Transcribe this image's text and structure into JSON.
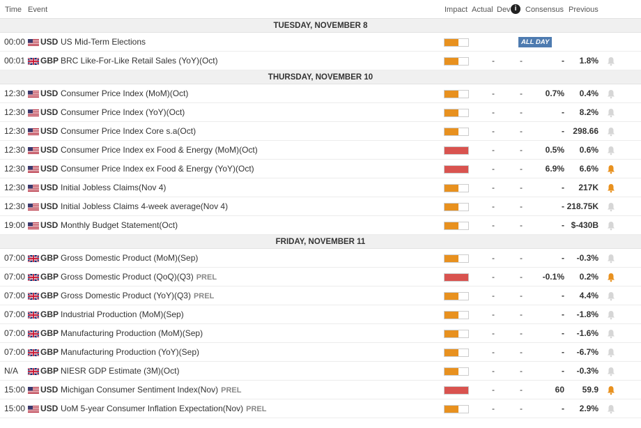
{
  "header": {
    "time": "Time",
    "event": "Event",
    "impact": "Impact",
    "actual": "Actual",
    "dev": "Dev",
    "info_icon": "i",
    "consensus": "Consensus",
    "previous": "Previous"
  },
  "colors": {
    "impact_medium": "#e8911f",
    "impact_high": "#d9534f",
    "bell_active": "#e8911f",
    "bell_inactive": "#d6d6d6",
    "allday_bg": "#4e7bb0"
  },
  "sections": [
    {
      "day": "TUESDAY, NOVEMBER 8",
      "rows": [
        {
          "time": "00:00",
          "flag": "us",
          "currency": "USD",
          "event": "US Mid-Term Elections",
          "prel": "",
          "impact": "medium",
          "impact_level": 0.6,
          "actual": "",
          "dev": "",
          "consensus": "",
          "previous": "",
          "all_day": "ALL DAY",
          "bell": "none"
        },
        {
          "time": "00:01",
          "flag": "gb",
          "currency": "GBP",
          "event": "BRC Like-For-Like Retail Sales (YoY)(Oct)",
          "prel": "",
          "impact": "medium",
          "impact_level": 0.6,
          "actual": "-",
          "dev": "-",
          "consensus": "-",
          "previous": "1.8%",
          "all_day": "",
          "bell": "inactive"
        }
      ]
    },
    {
      "day": "THURSDAY, NOVEMBER 10",
      "rows": [
        {
          "time": "12:30",
          "flag": "us",
          "currency": "USD",
          "event": "Consumer Price Index (MoM)(Oct)",
          "prel": "",
          "impact": "medium",
          "impact_level": 0.6,
          "actual": "-",
          "dev": "-",
          "consensus": "0.7%",
          "previous": "0.4%",
          "all_day": "",
          "bell": "inactive"
        },
        {
          "time": "12:30",
          "flag": "us",
          "currency": "USD",
          "event": "Consumer Price Index (YoY)(Oct)",
          "prel": "",
          "impact": "medium",
          "impact_level": 0.6,
          "actual": "-",
          "dev": "-",
          "consensus": "-",
          "previous": "8.2%",
          "all_day": "",
          "bell": "inactive"
        },
        {
          "time": "12:30",
          "flag": "us",
          "currency": "USD",
          "event": "Consumer Price Index Core s.a(Oct)",
          "prel": "",
          "impact": "medium",
          "impact_level": 0.6,
          "actual": "-",
          "dev": "-",
          "consensus": "-",
          "previous": "298.66",
          "all_day": "",
          "bell": "inactive"
        },
        {
          "time": "12:30",
          "flag": "us",
          "currency": "USD",
          "event": "Consumer Price Index ex Food & Energy (MoM)(Oct)",
          "prel": "",
          "impact": "high",
          "impact_level": 1.0,
          "actual": "-",
          "dev": "-",
          "consensus": "0.5%",
          "previous": "0.6%",
          "all_day": "",
          "bell": "inactive"
        },
        {
          "time": "12:30",
          "flag": "us",
          "currency": "USD",
          "event": "Consumer Price Index ex Food & Energy (YoY)(Oct)",
          "prel": "",
          "impact": "high",
          "impact_level": 1.0,
          "actual": "-",
          "dev": "-",
          "consensus": "6.9%",
          "previous": "6.6%",
          "all_day": "",
          "bell": "active"
        },
        {
          "time": "12:30",
          "flag": "us",
          "currency": "USD",
          "event": "Initial Jobless Claims(Nov 4)",
          "prel": "",
          "impact": "medium",
          "impact_level": 0.6,
          "actual": "-",
          "dev": "-",
          "consensus": "-",
          "previous": "217K",
          "all_day": "",
          "bell": "active"
        },
        {
          "time": "12:30",
          "flag": "us",
          "currency": "USD",
          "event": "Initial Jobless Claims 4-week average(Nov 4)",
          "prel": "",
          "impact": "medium",
          "impact_level": 0.6,
          "actual": "-",
          "dev": "-",
          "consensus": "-",
          "previous": "218.75K",
          "all_day": "",
          "bell": "inactive"
        },
        {
          "time": "19:00",
          "flag": "us",
          "currency": "USD",
          "event": "Monthly Budget Statement(Oct)",
          "prel": "",
          "impact": "medium",
          "impact_level": 0.6,
          "actual": "-",
          "dev": "-",
          "consensus": "-",
          "previous": "$-430B",
          "all_day": "",
          "bell": "inactive"
        }
      ]
    },
    {
      "day": "FRIDAY, NOVEMBER 11",
      "rows": [
        {
          "time": "07:00",
          "flag": "gb",
          "currency": "GBP",
          "event": "Gross Domestic Product (MoM)(Sep)",
          "prel": "",
          "impact": "medium",
          "impact_level": 0.6,
          "actual": "-",
          "dev": "-",
          "consensus": "-",
          "previous": "-0.3%",
          "all_day": "",
          "bell": "inactive"
        },
        {
          "time": "07:00",
          "flag": "gb",
          "currency": "GBP",
          "event": "Gross Domestic Product (QoQ)(Q3)",
          "prel": "PREL",
          "impact": "high",
          "impact_level": 1.0,
          "actual": "-",
          "dev": "-",
          "consensus": "-0.1%",
          "previous": "0.2%",
          "all_day": "",
          "bell": "active"
        },
        {
          "time": "07:00",
          "flag": "gb",
          "currency": "GBP",
          "event": "Gross Domestic Product (YoY)(Q3)",
          "prel": "PREL",
          "impact": "medium",
          "impact_level": 0.6,
          "actual": "-",
          "dev": "-",
          "consensus": "-",
          "previous": "4.4%",
          "all_day": "",
          "bell": "inactive"
        },
        {
          "time": "07:00",
          "flag": "gb",
          "currency": "GBP",
          "event": "Industrial Production (MoM)(Sep)",
          "prel": "",
          "impact": "medium",
          "impact_level": 0.6,
          "actual": "-",
          "dev": "-",
          "consensus": "-",
          "previous": "-1.8%",
          "all_day": "",
          "bell": "inactive"
        },
        {
          "time": "07:00",
          "flag": "gb",
          "currency": "GBP",
          "event": "Manufacturing Production (MoM)(Sep)",
          "prel": "",
          "impact": "medium",
          "impact_level": 0.6,
          "actual": "-",
          "dev": "-",
          "consensus": "-",
          "previous": "-1.6%",
          "all_day": "",
          "bell": "inactive"
        },
        {
          "time": "07:00",
          "flag": "gb",
          "currency": "GBP",
          "event": "Manufacturing Production (YoY)(Sep)",
          "prel": "",
          "impact": "medium",
          "impact_level": 0.6,
          "actual": "-",
          "dev": "-",
          "consensus": "-",
          "previous": "-6.7%",
          "all_day": "",
          "bell": "inactive"
        },
        {
          "time": "N/A",
          "flag": "gb",
          "currency": "GBP",
          "event": "NIESR GDP Estimate (3M)(Oct)",
          "prel": "",
          "impact": "medium",
          "impact_level": 0.6,
          "actual": "-",
          "dev": "-",
          "consensus": "-",
          "previous": "-0.3%",
          "all_day": "",
          "bell": "inactive"
        },
        {
          "time": "15:00",
          "flag": "us",
          "currency": "USD",
          "event": "Michigan Consumer Sentiment Index(Nov)",
          "prel": "PREL",
          "impact": "high",
          "impact_level": 1.0,
          "actual": "-",
          "dev": "-",
          "consensus": "60",
          "previous": "59.9",
          "all_day": "",
          "bell": "active"
        },
        {
          "time": "15:00",
          "flag": "us",
          "currency": "USD",
          "event": "UoM 5-year Consumer Inflation Expectation(Nov)",
          "prel": "PREL",
          "impact": "medium",
          "impact_level": 0.6,
          "actual": "-",
          "dev": "-",
          "consensus": "-",
          "previous": "2.9%",
          "all_day": "",
          "bell": "inactive"
        }
      ]
    }
  ]
}
